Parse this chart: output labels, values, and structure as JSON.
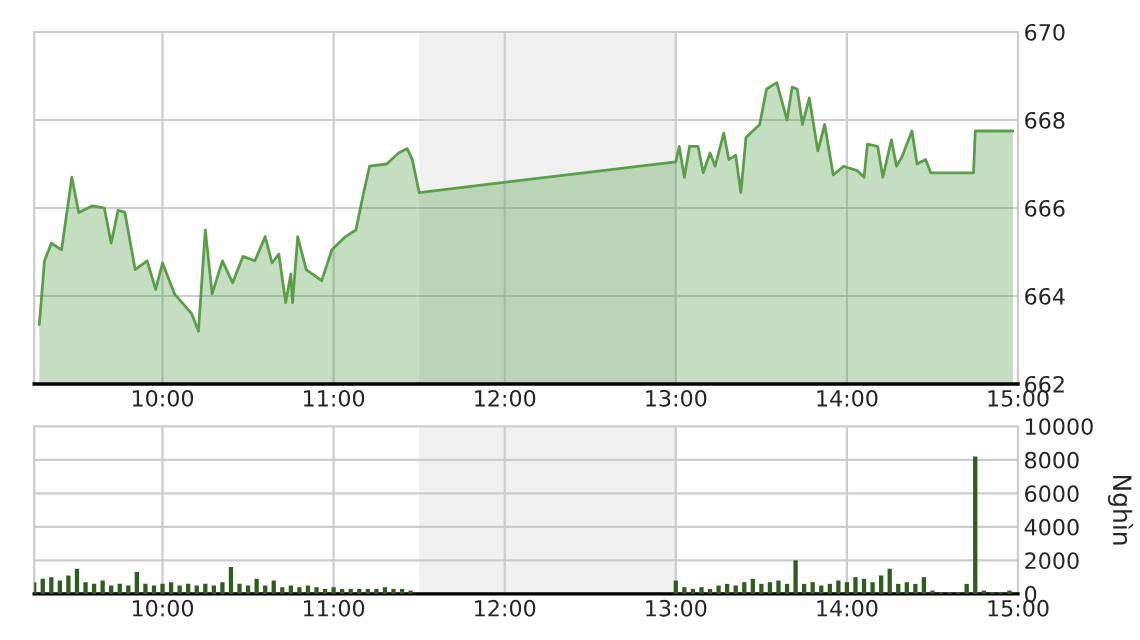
{
  "chart_data": [
    {
      "type": "area",
      "color": "#5a9e4a",
      "x": [
        9.28,
        9.31,
        9.35,
        9.41,
        9.47,
        9.51,
        9.59,
        9.66,
        9.7,
        9.74,
        9.78,
        9.84,
        9.91,
        9.96,
        10.0,
        10.07,
        10.17,
        10.21,
        10.25,
        10.29,
        10.35,
        10.41,
        10.47,
        10.54,
        10.6,
        10.64,
        10.68,
        10.72,
        10.75,
        10.76,
        10.79,
        10.84,
        10.93,
        10.99,
        11.07,
        11.13,
        11.17,
        11.21,
        11.31,
        11.38,
        11.43,
        11.46,
        11.5,
        13.0,
        13.02,
        13.05,
        13.08,
        13.13,
        13.16,
        13.2,
        13.23,
        13.28,
        13.31,
        13.35,
        13.38,
        13.41,
        13.49,
        13.53,
        13.59,
        13.65,
        13.68,
        13.71,
        13.74,
        13.78,
        13.83,
        13.87,
        13.92,
        13.98,
        14.06,
        14.1,
        14.12,
        14.18,
        14.21,
        14.26,
        14.29,
        14.32,
        14.38,
        14.41,
        14.46,
        14.49,
        14.74,
        14.75,
        14.97
      ],
      "values": [
        663.35,
        664.8,
        665.2,
        665.05,
        666.7,
        665.9,
        666.05,
        666.0,
        665.2,
        665.95,
        665.9,
        664.6,
        664.8,
        664.15,
        664.75,
        664.05,
        663.6,
        663.2,
        665.5,
        664.05,
        664.8,
        664.3,
        664.9,
        664.8,
        665.35,
        664.75,
        664.95,
        663.85,
        664.5,
        663.85,
        665.35,
        664.6,
        664.35,
        665.05,
        665.35,
        665.5,
        666.25,
        666.95,
        667.0,
        667.25,
        667.35,
        667.1,
        666.35,
        667.05,
        667.4,
        666.7,
        667.4,
        667.4,
        666.8,
        667.25,
        666.95,
        667.7,
        667.1,
        667.2,
        666.35,
        667.6,
        667.9,
        668.7,
        668.85,
        668.0,
        668.75,
        668.7,
        667.9,
        668.5,
        667.3,
        667.9,
        666.75,
        666.95,
        666.85,
        666.7,
        667.45,
        667.4,
        666.7,
        667.55,
        666.95,
        667.15,
        667.75,
        667.0,
        667.1,
        666.8,
        666.8,
        667.75,
        667.75
      ],
      "xlim": [
        9.25,
        15
      ],
      "xticks": [
        {
          "value": 10,
          "label": "10:00"
        },
        {
          "value": 11,
          "label": "11:00"
        },
        {
          "value": 12,
          "label": "12:00"
        },
        {
          "value": 13,
          "label": "13:00"
        },
        {
          "value": 14,
          "label": "14:00"
        },
        {
          "value": 15,
          "label": "15:00"
        }
      ],
      "ylim": [
        662,
        670
      ],
      "yticks": [
        662,
        664,
        666,
        668,
        670
      ],
      "grid": true,
      "bands": [
        {
          "axis": "x",
          "from": 11.5,
          "to": 13,
          "color": "#f0f0f0"
        }
      ]
    },
    {
      "type": "bar",
      "color": "#2e5e1e",
      "ylabel": "Nghìn",
      "x": [
        9.25,
        9.3,
        9.35,
        9.4,
        9.45,
        9.5,
        9.55,
        9.6,
        9.65,
        9.7,
        9.75,
        9.8,
        9.85,
        9.9,
        9.95,
        10.0,
        10.05,
        10.1,
        10.15,
        10.2,
        10.25,
        10.3,
        10.35,
        10.4,
        10.45,
        10.5,
        10.55,
        10.6,
        10.65,
        10.7,
        10.75,
        10.8,
        10.85,
        10.9,
        10.95,
        11.0,
        11.05,
        11.1,
        11.15,
        11.2,
        11.25,
        11.3,
        11.35,
        11.4,
        11.45,
        13.0,
        13.05,
        13.1,
        13.15,
        13.2,
        13.25,
        13.3,
        13.35,
        13.4,
        13.45,
        13.5,
        13.55,
        13.6,
        13.65,
        13.7,
        13.75,
        13.8,
        13.85,
        13.9,
        13.95,
        14.0,
        14.05,
        14.1,
        14.15,
        14.2,
        14.25,
        14.3,
        14.35,
        14.4,
        14.45,
        14.5,
        14.55,
        14.6,
        14.65,
        14.7,
        14.75,
        14.8,
        14.85,
        14.9,
        14.95
      ],
      "values": [
        700,
        900,
        1000,
        800,
        1100,
        1500,
        700,
        600,
        800,
        500,
        600,
        500,
        1300,
        600,
        500,
        600,
        700,
        500,
        600,
        500,
        600,
        500,
        700,
        1600,
        600,
        500,
        900,
        500,
        800,
        400,
        500,
        400,
        500,
        400,
        300,
        400,
        300,
        300,
        300,
        300,
        300,
        400,
        300,
        300,
        200,
        800,
        400,
        300,
        400,
        300,
        500,
        600,
        500,
        700,
        900,
        600,
        700,
        800,
        600,
        2000,
        600,
        700,
        500,
        600,
        800,
        700,
        1000,
        900,
        700,
        1100,
        1500,
        600,
        700,
        600,
        1000,
        200,
        100,
        100,
        100,
        600,
        8200,
        200,
        100,
        100,
        200
      ],
      "xlim": [
        9.25,
        15
      ],
      "xticks": [
        {
          "value": 10,
          "label": "10:00"
        },
        {
          "value": 11,
          "label": "11:00"
        },
        {
          "value": 12,
          "label": "12:00"
        },
        {
          "value": 13,
          "label": "13:00"
        },
        {
          "value": 14,
          "label": "14:00"
        },
        {
          "value": 15,
          "label": "15:00"
        }
      ],
      "ylim": [
        0,
        10000
      ],
      "yticks": [
        0,
        2000,
        4000,
        6000,
        8000,
        10000
      ],
      "grid": true,
      "bands": [
        {
          "axis": "x",
          "from": 11.5,
          "to": 13,
          "color": "#f0f0f0"
        }
      ]
    }
  ]
}
